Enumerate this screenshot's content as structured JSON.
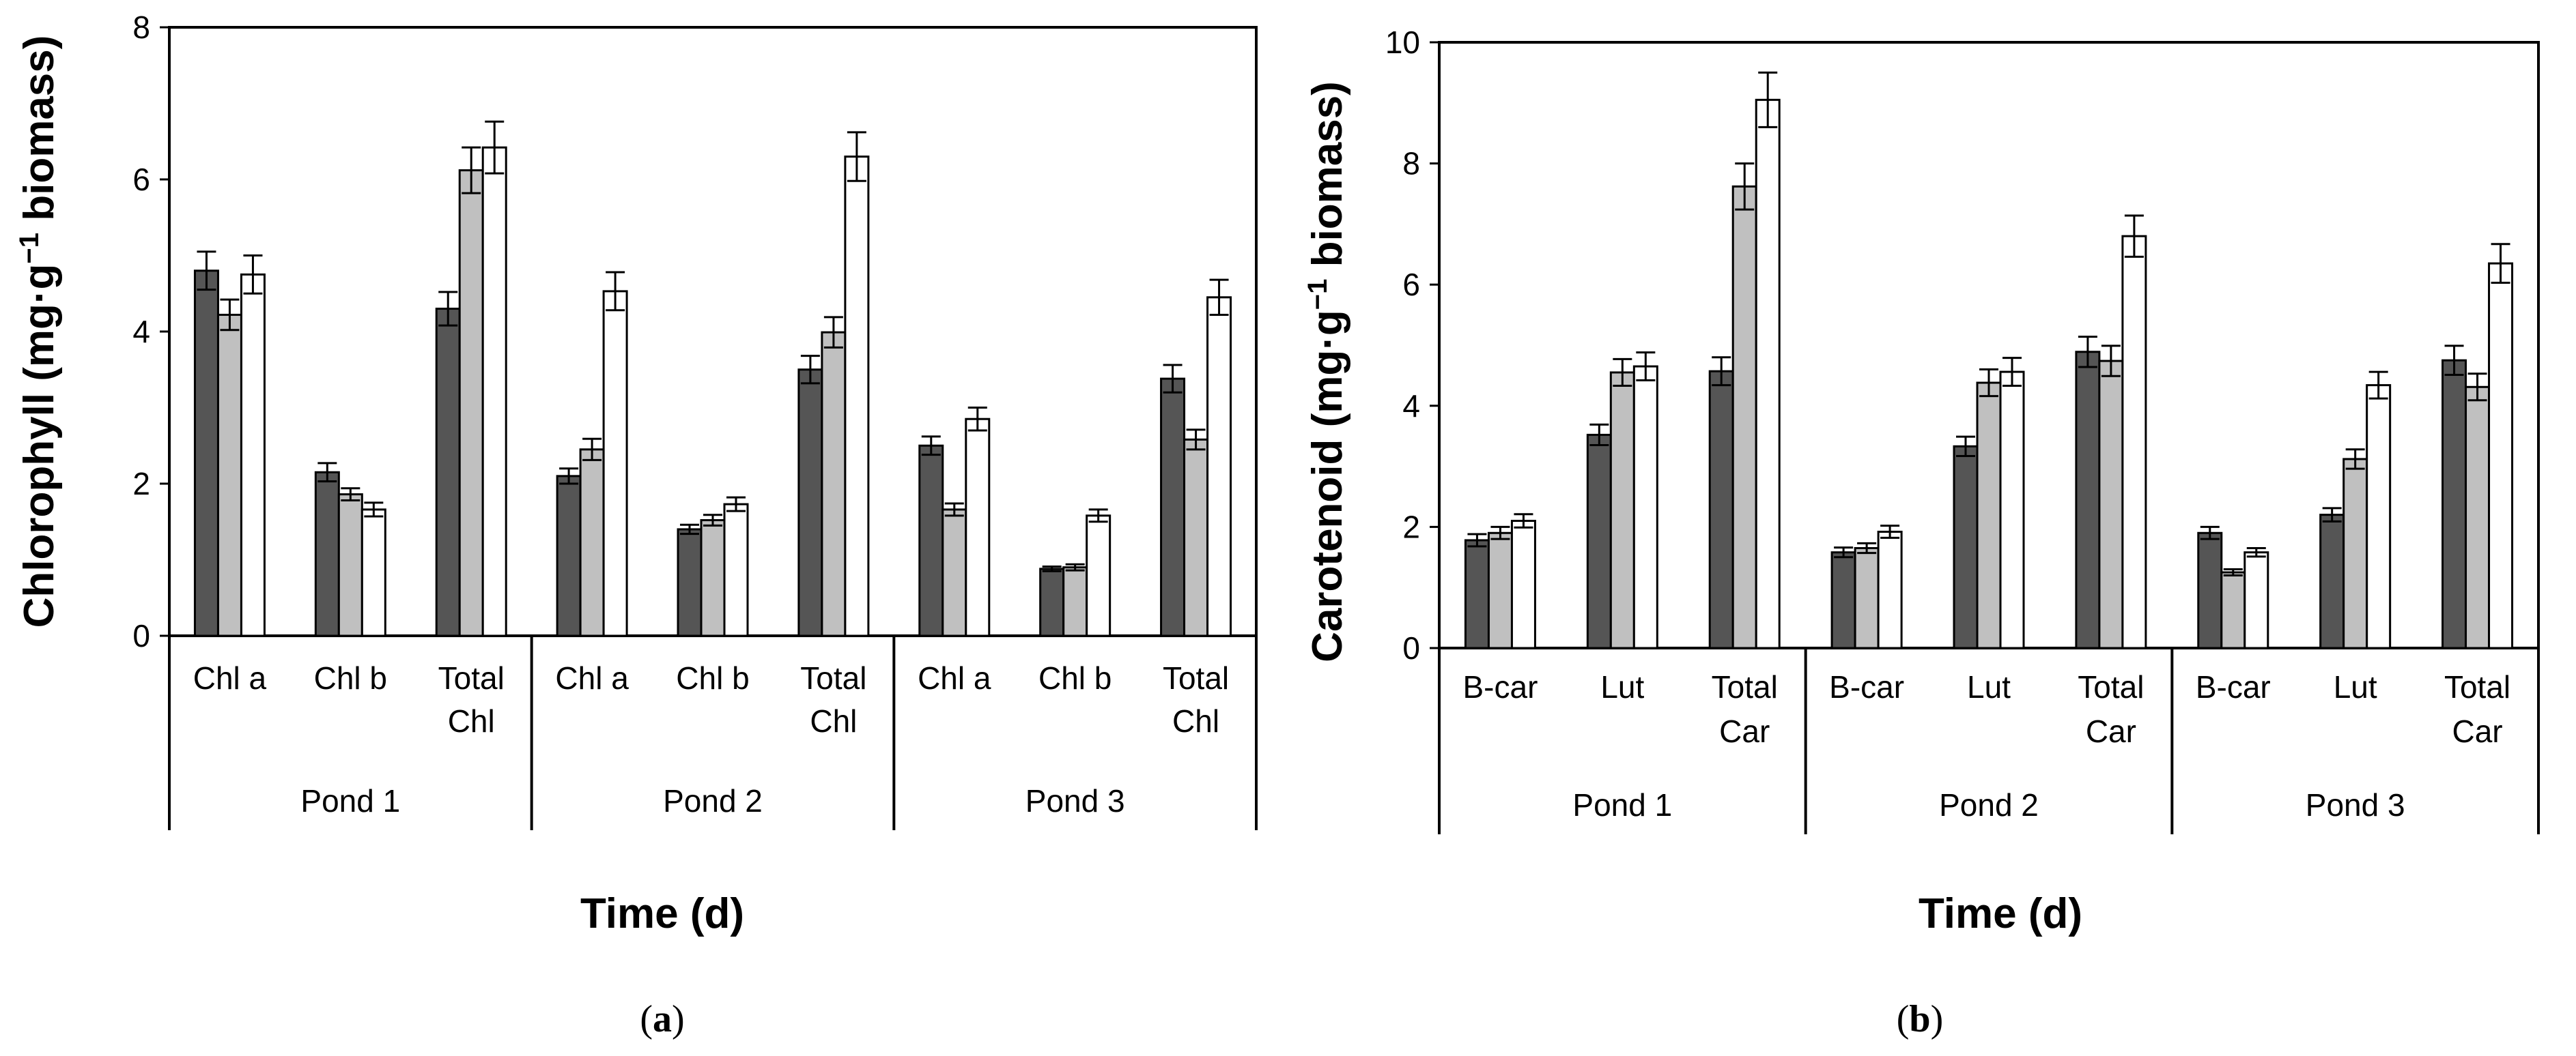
{
  "chart_data": [
    {
      "panel_label_open": "(",
      "panel_label_letter": "a",
      "panel_label_close": ")",
      "type": "bar",
      "title": "",
      "ylabel_main": "Chlorophyll (mg·g",
      "ylabel_sup": "−1",
      "ylabel_tail": " biomass)",
      "xlabel": "Time (d)",
      "ylim": [
        0,
        8
      ],
      "yticks": [
        "0",
        "2",
        "4",
        "6",
        "8"
      ],
      "grid": false,
      "groups": [
        {
          "label": "Pond 1",
          "categories": [
            [
              "Chl a"
            ],
            [
              "Chl b"
            ],
            [
              "Total",
              "Chl"
            ]
          ]
        },
        {
          "label": "Pond 2",
          "categories": [
            [
              "Chl a"
            ],
            [
              "Chl b"
            ],
            [
              "Total",
              "Chl"
            ]
          ]
        },
        {
          "label": "Pond 3",
          "categories": [
            [
              "Chl a"
            ],
            [
              "Chl b"
            ],
            [
              "Total",
              "Chl"
            ]
          ]
        }
      ],
      "series": [
        {
          "name": "series-1",
          "color": "#555555",
          "values": [
            4.8,
            2.15,
            4.3,
            2.1,
            1.4,
            3.5,
            2.5,
            0.88,
            3.38
          ],
          "errors": [
            0.25,
            0.12,
            0.22,
            0.1,
            0.06,
            0.18,
            0.12,
            0.03,
            0.18
          ]
        },
        {
          "name": "series-2",
          "color": "#c0c0c0",
          "values": [
            4.22,
            1.86,
            6.12,
            2.45,
            1.52,
            3.99,
            1.66,
            0.9,
            2.58
          ],
          "errors": [
            0.2,
            0.08,
            0.3,
            0.14,
            0.07,
            0.2,
            0.08,
            0.04,
            0.13
          ]
        },
        {
          "name": "series-3",
          "color": "#ffffff",
          "values": [
            4.75,
            1.66,
            6.42,
            4.53,
            1.73,
            6.3,
            2.85,
            1.58,
            4.45
          ],
          "errors": [
            0.25,
            0.09,
            0.34,
            0.25,
            0.09,
            0.32,
            0.15,
            0.08,
            0.23
          ]
        }
      ]
    },
    {
      "panel_label_open": "(",
      "panel_label_letter": "b",
      "panel_label_close": ")",
      "type": "bar",
      "title": "",
      "ylabel_main": "Carotenoid (mg·g",
      "ylabel_sup": "−1",
      "ylabel_tail": " biomass)",
      "xlabel": "Time (d)",
      "ylim": [
        0,
        10
      ],
      "yticks": [
        "0",
        "2",
        "4",
        "6",
        "8",
        "10"
      ],
      "grid": false,
      "groups": [
        {
          "label": "Pond 1",
          "categories": [
            [
              "B-car"
            ],
            [
              "Lut"
            ],
            [
              "Total",
              "Car"
            ]
          ]
        },
        {
          "label": "Pond 2",
          "categories": [
            [
              "B-car"
            ],
            [
              "Lut"
            ],
            [
              "Total",
              "Car"
            ]
          ]
        },
        {
          "label": "Pond 3",
          "categories": [
            [
              "B-car"
            ],
            [
              "Lut"
            ],
            [
              "Total",
              "Car"
            ]
          ]
        }
      ],
      "series": [
        {
          "name": "series-1",
          "color": "#555555",
          "values": [
            1.78,
            3.52,
            4.57,
            1.58,
            3.33,
            4.89,
            1.9,
            2.2,
            4.75
          ],
          "errors": [
            0.1,
            0.17,
            0.23,
            0.08,
            0.16,
            0.25,
            0.1,
            0.11,
            0.24
          ]
        },
        {
          "name": "series-2",
          "color": "#c0c0c0",
          "values": [
            1.9,
            4.55,
            7.62,
            1.65,
            4.38,
            4.74,
            1.25,
            3.12,
            4.31
          ],
          "errors": [
            0.1,
            0.22,
            0.38,
            0.08,
            0.22,
            0.25,
            0.05,
            0.16,
            0.22
          ]
        },
        {
          "name": "series-3",
          "color": "#ffffff",
          "values": [
            2.1,
            4.65,
            9.05,
            1.92,
            4.56,
            6.8,
            1.58,
            4.34,
            6.35
          ],
          "errors": [
            0.11,
            0.23,
            0.45,
            0.1,
            0.23,
            0.34,
            0.07,
            0.22,
            0.32
          ]
        }
      ]
    }
  ]
}
